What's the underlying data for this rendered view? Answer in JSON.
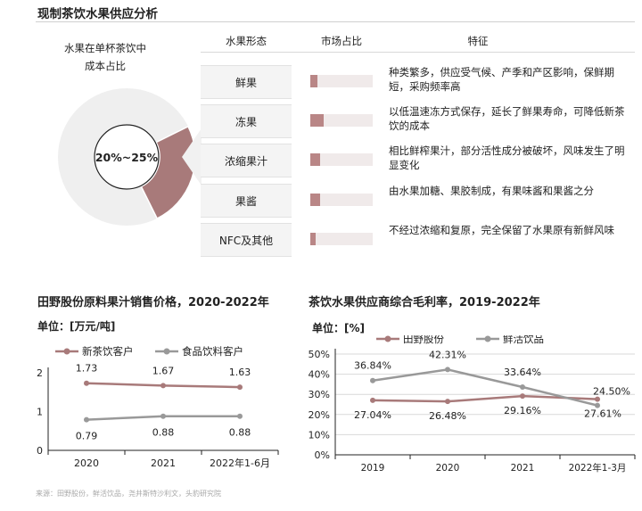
{
  "page_title": "现制茶饮水果供应分析",
  "donut": {
    "title_line1": "水果在单杯茶饮中",
    "title_line2": "成本占比",
    "center_label": "20%~25%",
    "share_range_pct": [
      20,
      25
    ],
    "colors": {
      "highlight": "#a87a7a",
      "rest": "#efefef"
    }
  },
  "table": {
    "headers": {
      "form": "水果形态",
      "share": "市场占比",
      "feature": "特征"
    },
    "rows": [
      {
        "form": "鲜果",
        "share_level": 0.12,
        "feature": "种类繁多，供应受气候、产季和产区影响，保鲜期短，采购频率高"
      },
      {
        "form": "冻果",
        "share_level": 0.22,
        "feature": "以低温速冻方式保存，延长了鲜果寿命，可降低新茶饮的成本"
      },
      {
        "form": "浓缩果汁",
        "share_level": 0.16,
        "feature": "相比鲜榨果汁，部分活性成分被破坏，风味发生了明显变化"
      },
      {
        "form": "果酱",
        "share_level": 0.16,
        "feature": "由水果加糖、果胶制成，有果味酱和果酱之分"
      },
      {
        "form": "NFC及其他",
        "share_level": 0.08,
        "feature": "不经过浓缩和复原，完全保留了水果原有新鲜风味"
      }
    ]
  },
  "left_chart": {
    "title": "田野股份原料果汁销售价格，2020-2022年",
    "unit": "单位：[万元/吨]"
  },
  "right_chart": {
    "title": "茶饮水果供应商综合毛利率，2019-2022年",
    "unit": "单位：[%]"
  },
  "footnote": "来源：田野股份，鲜活饮品，尧井斯特沙利文，头豹研究院",
  "chart_data": [
    {
      "type": "line",
      "title": "田野股份原料果汁销售价格，2020-2022年",
      "ylabel": "单位：[万元/吨]",
      "categories": [
        "2020",
        "2021",
        "2022年1-6月"
      ],
      "ylim": [
        0,
        2
      ],
      "yticks": [
        "0",
        "1",
        "2"
      ],
      "series": [
        {
          "name": "新茶饮客户",
          "values": [
            1.73,
            1.67,
            1.63
          ],
          "labels": [
            "1.73",
            "1.67",
            "1.63"
          ],
          "color": "#a87a7a"
        },
        {
          "name": "食品饮料客户",
          "values": [
            0.79,
            0.88,
            0.88
          ],
          "labels": [
            "0.79",
            "0.88",
            "0.88"
          ],
          "color": "#999999"
        }
      ],
      "legend": "top",
      "grid": false
    },
    {
      "type": "line",
      "title": "茶饮水果供应商综合毛利率，2019-2022年",
      "ylabel": "单位：[%]",
      "categories": [
        "2019",
        "2020",
        "2021",
        "2022年1-3月"
      ],
      "ylim": [
        0,
        50
      ],
      "yticks": [
        "0%",
        "10%",
        "20%",
        "30%",
        "40%",
        "50%"
      ],
      "series": [
        {
          "name": "田野股份",
          "values": [
            27.04,
            26.48,
            29.16,
            27.61
          ],
          "labels": [
            "27.04%",
            "26.48%",
            "29.16%",
            "27.61%"
          ],
          "color": "#a87a7a"
        },
        {
          "name": "鲜活饮品",
          "values": [
            36.84,
            42.31,
            33.64,
            24.5
          ],
          "labels": [
            "36.84%",
            "42.31%",
            "33.64%",
            "24.50%"
          ],
          "color": "#999999"
        }
      ],
      "legend": "top",
      "grid": true
    }
  ]
}
